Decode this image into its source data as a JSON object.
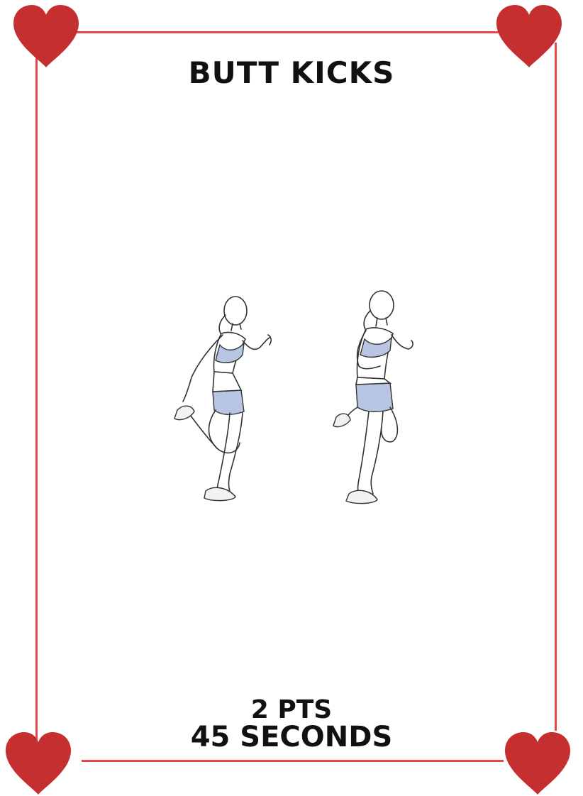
{
  "card": {
    "title": "BUTT KICKS",
    "points": "2 PTS",
    "duration": "45 SECONDS"
  },
  "illustration": {
    "figure_icon": "butt-kicks-exercise-illustration",
    "figure_count": 2
  },
  "decoration": {
    "corner_icon": "heart-icon",
    "heart_color": "#c62f2f",
    "border_color": "#e8484c"
  }
}
